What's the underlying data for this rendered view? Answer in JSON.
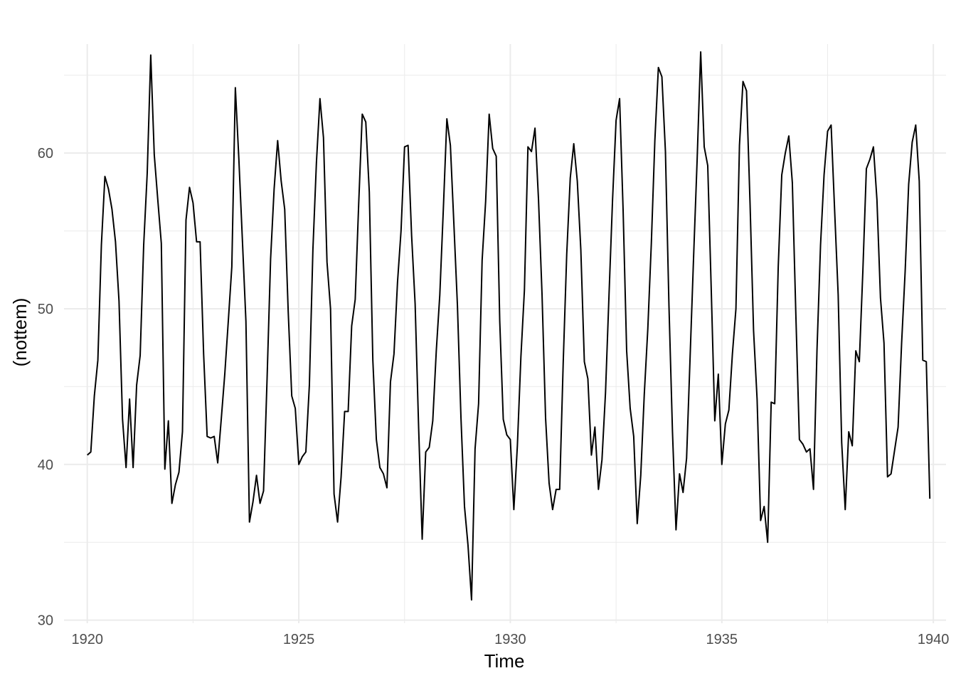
{
  "chart_data": {
    "type": "line",
    "title": "",
    "xlabel": "Time",
    "ylabel": "(nottem)",
    "xlim": [
      1919.45,
      1940.3
    ],
    "ylim": [
      29.8,
      67.0
    ],
    "x_ticks": [
      1920,
      1925,
      1930,
      1935,
      1940
    ],
    "y_ticks": [
      30,
      40,
      50,
      60
    ],
    "x_minor": [
      1922.5,
      1927.5,
      1932.5,
      1937.5
    ],
    "y_minor": [
      35,
      45,
      55,
      65
    ],
    "grid": true,
    "legend": "none",
    "line_color": "#000000",
    "grid_color": "#ebebeb",
    "series": [
      {
        "start": 1920.0,
        "frequency": 12,
        "values": [
          40.6,
          40.8,
          44.4,
          46.7,
          54.1,
          58.5,
          57.7,
          56.4,
          54.3,
          50.5,
          42.9,
          39.8,
          44.2,
          39.8,
          45.1,
          47.0,
          54.1,
          58.7,
          66.3,
          59.9,
          57.0,
          54.2,
          39.7,
          42.8,
          37.5,
          38.7,
          39.5,
          42.1,
          55.7,
          57.8,
          56.8,
          54.3,
          54.3,
          47.1,
          41.8,
          41.7,
          41.8,
          40.1,
          42.9,
          45.8,
          49.2,
          52.7,
          64.2,
          59.6,
          54.4,
          49.2,
          36.3,
          37.6,
          39.3,
          37.5,
          38.3,
          45.5,
          53.2,
          57.7,
          60.8,
          58.2,
          56.4,
          49.8,
          44.4,
          43.6,
          40.0,
          40.5,
          40.8,
          45.1,
          53.8,
          59.4,
          63.5,
          61.0,
          53.0,
          50.0,
          38.1,
          36.3,
          39.2,
          43.4,
          43.4,
          48.9,
          50.6,
          56.8,
          62.5,
          62.0,
          57.5,
          46.7,
          41.6,
          39.8,
          39.4,
          38.5,
          45.3,
          47.1,
          51.7,
          55.0,
          60.4,
          60.5,
          54.7,
          50.3,
          42.3,
          35.2,
          40.8,
          41.1,
          42.8,
          47.3,
          50.9,
          56.4,
          62.2,
          60.5,
          55.4,
          50.2,
          43.0,
          37.3,
          34.8,
          31.3,
          41.0,
          43.9,
          53.1,
          56.9,
          62.5,
          60.3,
          59.8,
          49.2,
          42.9,
          41.9,
          41.6,
          37.1,
          41.2,
          46.9,
          51.2,
          60.4,
          60.1,
          61.6,
          57.0,
          50.9,
          43.0,
          38.8,
          37.1,
          38.4,
          38.4,
          46.5,
          53.5,
          58.4,
          60.6,
          58.2,
          53.8,
          46.6,
          45.5,
          40.6,
          42.4,
          38.4,
          40.3,
          44.6,
          50.9,
          57.0,
          62.1,
          63.5,
          56.3,
          47.3,
          43.6,
          41.8,
          36.2,
          39.3,
          44.5,
          48.7,
          54.2,
          60.8,
          65.5,
          64.9,
          60.1,
          50.2,
          42.1,
          35.8,
          39.4,
          38.2,
          40.4,
          46.9,
          53.4,
          59.6,
          66.5,
          60.4,
          59.2,
          51.2,
          42.8,
          45.8,
          40.0,
          42.6,
          43.5,
          47.1,
          50.0,
          60.5,
          64.6,
          64.0,
          56.8,
          48.6,
          44.2,
          36.4,
          37.3,
          35.0,
          44.0,
          43.9,
          52.7,
          58.6,
          60.0,
          61.1,
          58.1,
          49.6,
          41.6,
          41.3,
          40.8,
          41.0,
          38.4,
          47.4,
          54.1,
          58.6,
          61.4,
          61.8,
          56.3,
          50.9,
          41.4,
          37.1,
          42.1,
          41.2,
          47.3,
          46.6,
          52.4,
          59.0,
          59.6,
          60.4,
          57.0,
          50.7,
          47.8,
          39.2,
          39.4,
          40.9,
          42.4,
          47.8,
          52.4,
          58.0,
          60.7,
          61.8,
          58.2,
          46.7,
          46.6,
          37.8
        ]
      }
    ]
  }
}
